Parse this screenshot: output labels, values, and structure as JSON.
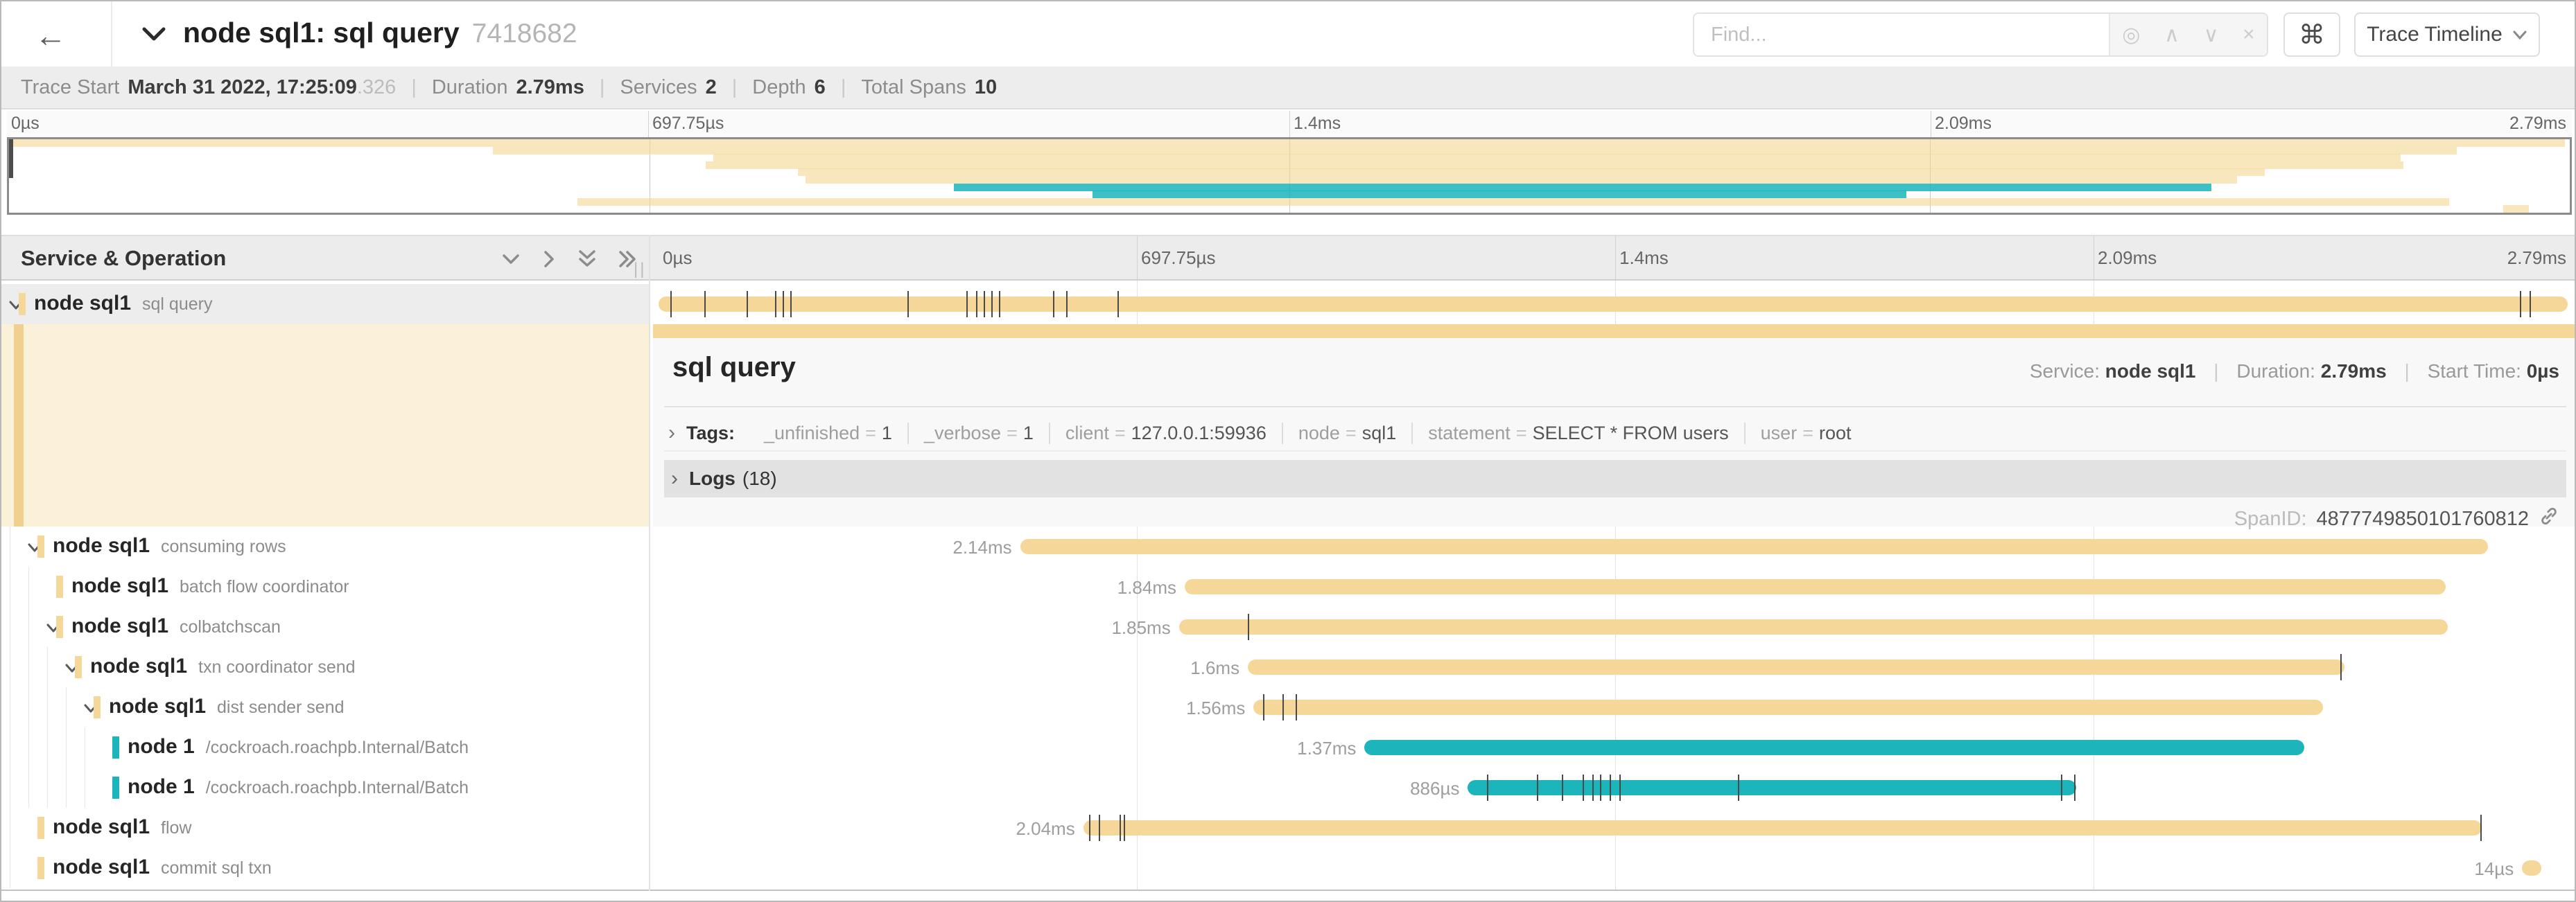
{
  "header": {
    "back": "←",
    "title": "node sql1: sql query",
    "trace_id": "7418682",
    "find_placeholder": "Find...",
    "find_tools": [
      "target-icon",
      "prev-icon",
      "next-icon",
      "clear-icon"
    ],
    "find_tool_glyphs": {
      "target": "◎",
      "prev": "∧",
      "next": "∨",
      "clear": "×"
    },
    "shortcut_glyph": "⌘",
    "view_button_label": "Trace Timeline"
  },
  "summary": {
    "trace_start_label": "Trace Start",
    "trace_start_value": "March 31 2022, 17:25:09",
    "trace_start_fraction": ".326",
    "duration_label": "Duration",
    "duration_value": "2.79ms",
    "services_label": "Services",
    "services_value": "2",
    "depth_label": "Depth",
    "depth_value": "6",
    "total_spans_label": "Total Spans",
    "total_spans_value": "10"
  },
  "timeline": {
    "ticks": [
      "0µs",
      "697.75µs",
      "1.4ms",
      "2.09ms",
      "2.79ms"
    ],
    "tick_pcts": [
      0,
      25,
      50,
      75,
      100
    ],
    "tree_header": "Service & Operation",
    "grip": "||"
  },
  "colors": {
    "tan": "#f5d899",
    "teal": "#1bb5bb"
  },
  "detail": {
    "title": "sql query",
    "service_label": "Service:",
    "service_value": "node sql1",
    "duration_label": "Duration:",
    "duration_value": "2.79ms",
    "start_label": "Start Time:",
    "start_value": "0µs",
    "tags_chevron": "›",
    "tags_label": "Tags:",
    "tags": [
      {
        "key": "_unfinished",
        "value": "1"
      },
      {
        "key": "_verbose",
        "value": "1"
      },
      {
        "key": "client",
        "value": "127.0.0.1:59936"
      },
      {
        "key": "node",
        "value": "sql1"
      },
      {
        "key": "statement",
        "value": "SELECT * FROM users"
      },
      {
        "key": "user",
        "value": "root"
      }
    ],
    "logs_chevron": "›",
    "logs_label": "Logs",
    "logs_count": "(18)",
    "span_id_label": "SpanID:",
    "span_id_value": "4877749850101760812"
  },
  "spans": [
    {
      "service": "node sql1",
      "operation": "sql query",
      "depth": 0,
      "expandable": true,
      "selected": true,
      "color": "tan",
      "start_pct": 0,
      "width_pct": 99.8,
      "duration_label": "",
      "ticks": [
        0.6,
        2.4,
        4.6,
        6.1,
        6.5,
        6.9,
        13.0,
        16.1,
        16.6,
        17.0,
        17.4,
        17.8,
        20.6,
        21.3,
        24.0,
        97.3,
        97.8
      ]
    },
    {
      "service": "node sql1",
      "operation": "consuming rows",
      "depth": 1,
      "expandable": true,
      "selected": false,
      "color": "tan",
      "start_pct": 18.9,
      "width_pct": 76.7,
      "duration_label": "2.14ms",
      "ticks": []
    },
    {
      "service": "node sql1",
      "operation": "batch flow coordinator",
      "depth": 2,
      "expandable": false,
      "selected": false,
      "color": "tan",
      "start_pct": 27.5,
      "width_pct": 65.9,
      "duration_label": "1.84ms",
      "ticks": []
    },
    {
      "service": "node sql1",
      "operation": "colbatchscan",
      "depth": 2,
      "expandable": true,
      "selected": false,
      "color": "tan",
      "start_pct": 27.2,
      "width_pct": 66.3,
      "duration_label": "1.85ms",
      "ticks": [
        30.8
      ]
    },
    {
      "service": "node sql1",
      "operation": "txn coordinator send",
      "depth": 3,
      "expandable": true,
      "selected": false,
      "color": "tan",
      "start_pct": 30.8,
      "width_pct": 57.3,
      "duration_label": "1.6ms",
      "ticks": [
        87.9
      ]
    },
    {
      "service": "node sql1",
      "operation": "dist sender send",
      "depth": 4,
      "expandable": true,
      "selected": false,
      "color": "tan",
      "start_pct": 31.1,
      "width_pct": 55.9,
      "duration_label": "1.56ms",
      "ticks": [
        31.6,
        32.6,
        33.3
      ]
    },
    {
      "service": "node 1",
      "operation": "/cockroach.roachpb.Internal/Batch",
      "depth": 5,
      "expandable": false,
      "selected": false,
      "color": "teal",
      "start_pct": 36.9,
      "width_pct": 49.1,
      "duration_label": "1.37ms",
      "ticks": []
    },
    {
      "service": "node 1",
      "operation": "/cockroach.roachpb.Internal/Batch",
      "depth": 5,
      "expandable": false,
      "selected": false,
      "color": "teal",
      "start_pct": 42.3,
      "width_pct": 31.8,
      "duration_label": "886µs",
      "ticks": [
        43.3,
        45.9,
        47.2,
        48.3,
        48.8,
        49.2,
        49.7,
        50.2,
        56.4,
        73.3,
        74.0
      ]
    },
    {
      "service": "node sql1",
      "operation": "flow",
      "depth": 1,
      "expandable": false,
      "selected": false,
      "color": "tan",
      "start_pct": 22.2,
      "width_pct": 73.1,
      "duration_label": "2.04ms",
      "ticks": [
        22.5,
        23.0,
        24.1,
        24.3,
        95.2
      ]
    },
    {
      "service": "node sql1",
      "operation": "commit sql txn",
      "depth": 1,
      "expandable": false,
      "selected": false,
      "color": "tan",
      "start_pct": 97.4,
      "width_pct": 1.0,
      "duration_label": "14µs",
      "ticks": []
    }
  ]
}
